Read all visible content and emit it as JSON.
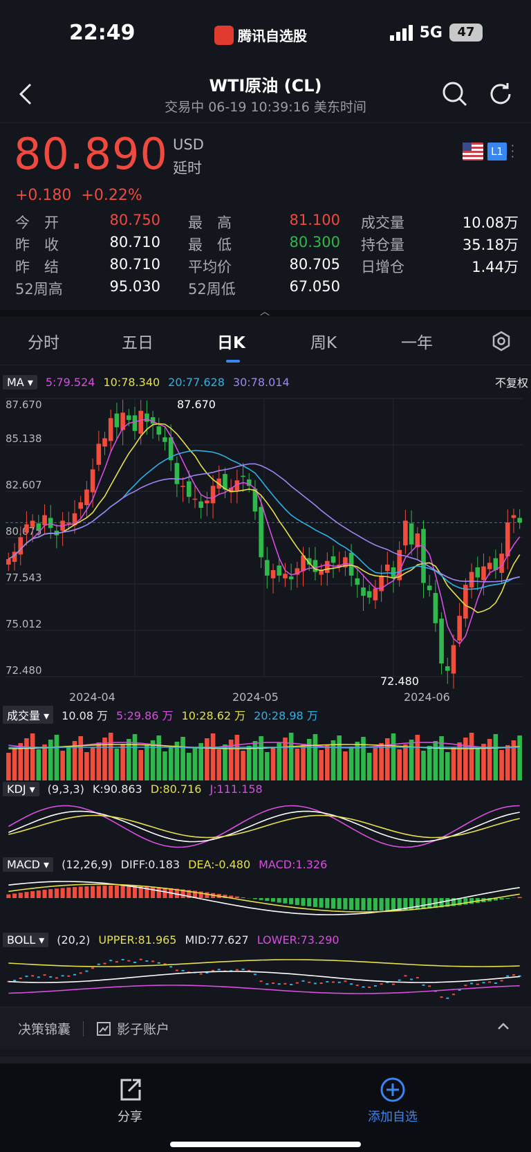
{
  "status_bar": {
    "time": "22:49",
    "app_name": "腾讯自选股",
    "network": "5G",
    "battery": "47"
  },
  "header": {
    "title": "WTI原油 (CL)",
    "subtitle": "交易中   06-19 10:39:16 美东时间"
  },
  "quote": {
    "price": "80.890",
    "currency": "USD",
    "delay": "延时",
    "change": "+0.180",
    "change_pct": "+0.22%",
    "market_badge": "L1",
    "stats": [
      [
        {
          "label": "今　开",
          "value": "80.750",
          "color": "red"
        },
        {
          "label": "最　高",
          "value": "81.100",
          "color": "red"
        },
        {
          "label": "成交量",
          "value": "10.08万",
          "color": "white"
        }
      ],
      [
        {
          "label": "昨　收",
          "value": "80.710",
          "color": "white"
        },
        {
          "label": "最　低",
          "value": "80.300",
          "color": "green"
        },
        {
          "label": "持仓量",
          "value": "35.18万",
          "color": "white"
        }
      ],
      [
        {
          "label": "昨　结",
          "value": "80.710",
          "color": "white"
        },
        {
          "label": "平均价",
          "value": "80.705",
          "color": "white"
        },
        {
          "label": "日增仓",
          "value": "1.44万",
          "color": "white"
        }
      ],
      [
        {
          "label": "52周高",
          "value": "95.030",
          "color": "white"
        },
        {
          "label": "52周低",
          "value": "67.050",
          "color": "white"
        }
      ]
    ]
  },
  "tabs": [
    "分时",
    "五日",
    "日K",
    "周K",
    "一年"
  ],
  "active_tab": "日K",
  "indicators": {
    "ma": {
      "name": "MA",
      "ma5": "5:79.524",
      "ma10": "10:78.340",
      "ma20": "20:77.628",
      "ma30": "30:78.014",
      "adjust": "不复权"
    },
    "vol": {
      "name": "成交量",
      "total": "10.08 万",
      "v5": "5:29.86 万",
      "v10": "10:28.62 万",
      "v20": "20:28.98 万"
    },
    "kdj": {
      "name": "KDJ",
      "params": "(9,3,3)",
      "k": "K:90.863",
      "d": "D:80.716",
      "j": "J:111.158"
    },
    "macd": {
      "name": "MACD",
      "params": "(12,26,9)",
      "diff": "DIFF:0.183",
      "dea": "DEA:-0.480",
      "macd": "MACD:1.326"
    },
    "boll": {
      "name": "BOLL",
      "params": "(20,2)",
      "upper": "UPPER:81.965",
      "mid": "MID:77.627",
      "lower": "LOWER:73.290"
    }
  },
  "chart_data": {
    "type": "candlestick",
    "y_ticks": [
      "87.670",
      "85.138",
      "82.607",
      "80.075",
      "77.543",
      "75.012",
      "72.480"
    ],
    "x_ticks": [
      "2024-04",
      "2024-05",
      "2024-06"
    ],
    "high_label": "87.670",
    "low_label": "72.480",
    "close": [
      78.9,
      79.3,
      80.1,
      80.8,
      81.0,
      80.5,
      81.3,
      80.6,
      80.2,
      81.0,
      80.9,
      81.4,
      82.0,
      82.7,
      83.8,
      85.2,
      85.5,
      86.6,
      86.1,
      86.9,
      86.5,
      85.9,
      87.0,
      86.4,
      86.3,
      85.7,
      85.3,
      84.3,
      83.0,
      82.9,
      82.3,
      82.2,
      81.7,
      82.1,
      82.9,
      83.3,
      82.7,
      82.8,
      83.2,
      83.4,
      82.9,
      81.5,
      79.0,
      78.0,
      78.3,
      78.0,
      78.1,
      77.8,
      78.4,
      79.1,
      78.6,
      78.2,
      78.3,
      78.8,
      78.7,
      78.6,
      79.0,
      78.0,
      77.5,
      76.9,
      76.8,
      77.3,
      78.0,
      78.6,
      77.9,
      79.4,
      81.0,
      79.7,
      80.3,
      77.6,
      77.2,
      75.4,
      73.2,
      72.8,
      74.2,
      75.8,
      77.5,
      78.2,
      77.9,
      78.5,
      78.7,
      78.3,
      79.2,
      80.9,
      81.3,
      80.9
    ],
    "volume_unit": "万",
    "volume_total": 10.08
  },
  "bottom": {
    "strategy": "决策锦囊",
    "shadow": "影子账户"
  },
  "actions": {
    "share": "分享",
    "add": "添加自选"
  }
}
